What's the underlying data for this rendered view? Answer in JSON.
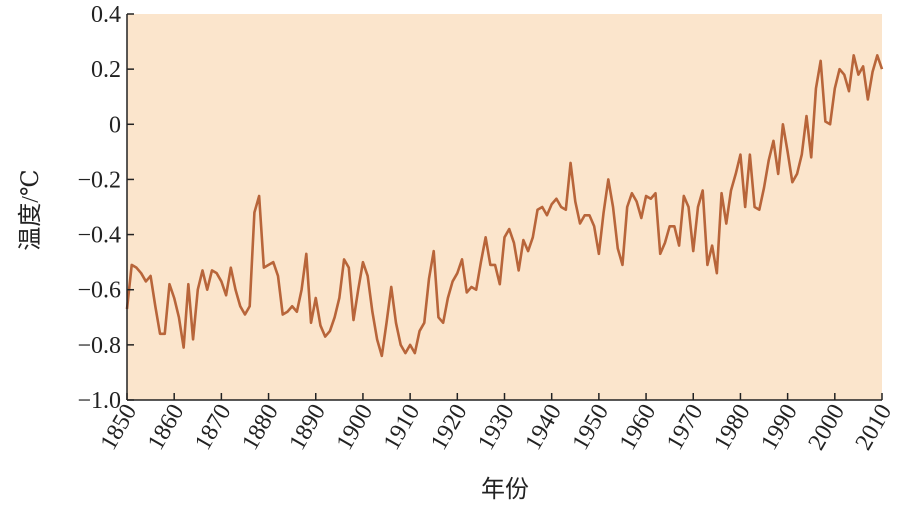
{
  "chart_data": {
    "type": "line",
    "x_label": "年份",
    "y_label": "温度/℃",
    "color": "#b8653a",
    "background": "#fbe5cc",
    "xlim": [
      1850,
      2010
    ],
    "ylim": [
      -1.0,
      0.4
    ],
    "xticks": [
      1850,
      1860,
      1870,
      1880,
      1890,
      1900,
      1910,
      1920,
      1930,
      1940,
      1950,
      1960,
      1970,
      1980,
      1990,
      2000,
      2010
    ],
    "yticks": [
      0.4,
      0.2,
      0,
      {
        "value": -0.2,
        "label": "−0.2"
      },
      {
        "value": -0.4,
        "label": "−0.4"
      },
      {
        "value": -0.6,
        "label": "−0.6"
      },
      {
        "value": -0.8,
        "label": "−0.8"
      },
      {
        "value": -1.0,
        "label": "−1.0"
      }
    ],
    "x": [
      1850,
      1851,
      1852,
      1853,
      1854,
      1855,
      1856,
      1857,
      1858,
      1859,
      1860,
      1861,
      1862,
      1863,
      1864,
      1865,
      1866,
      1867,
      1868,
      1869,
      1870,
      1871,
      1872,
      1873,
      1874,
      1875,
      1876,
      1877,
      1878,
      1879,
      1880,
      1881,
      1882,
      1883,
      1884,
      1885,
      1886,
      1887,
      1888,
      1889,
      1890,
      1891,
      1892,
      1893,
      1894,
      1895,
      1896,
      1897,
      1898,
      1899,
      1900,
      1901,
      1902,
      1903,
      1904,
      1905,
      1906,
      1907,
      1908,
      1909,
      1910,
      1911,
      1912,
      1913,
      1914,
      1915,
      1916,
      1917,
      1918,
      1919,
      1920,
      1921,
      1922,
      1923,
      1924,
      1925,
      1926,
      1927,
      1928,
      1929,
      1930,
      1931,
      1932,
      1933,
      1934,
      1935,
      1936,
      1937,
      1938,
      1939,
      1940,
      1941,
      1942,
      1943,
      1944,
      1945,
      1946,
      1947,
      1948,
      1949,
      1950,
      1951,
      1952,
      1953,
      1954,
      1955,
      1956,
      1957,
      1958,
      1959,
      1960,
      1961,
      1962,
      1963,
      1964,
      1965,
      1966,
      1967,
      1968,
      1969,
      1970,
      1971,
      1972,
      1973,
      1974,
      1975,
      1976,
      1977,
      1978,
      1979,
      1980,
      1981,
      1982,
      1983,
      1984,
      1985,
      1986,
      1987,
      1988,
      1989,
      1990,
      1991,
      1992,
      1993,
      1994,
      1995,
      1996,
      1997,
      1998,
      1999,
      2000,
      2001,
      2002,
      2003,
      2004,
      2005,
      2006,
      2007,
      2008,
      2009,
      2010
    ],
    "values": [
      -0.67,
      -0.51,
      -0.52,
      -0.54,
      -0.57,
      -0.55,
      -0.66,
      -0.76,
      -0.76,
      -0.58,
      -0.63,
      -0.7,
      -0.81,
      -0.58,
      -0.78,
      -0.6,
      -0.53,
      -0.6,
      -0.53,
      -0.54,
      -0.57,
      -0.62,
      -0.52,
      -0.6,
      -0.66,
      -0.69,
      -0.66,
      -0.32,
      -0.26,
      -0.52,
      -0.51,
      -0.5,
      -0.55,
      -0.69,
      -0.68,
      -0.66,
      -0.68,
      -0.6,
      -0.47,
      -0.72,
      -0.63,
      -0.73,
      -0.77,
      -0.75,
      -0.7,
      -0.63,
      -0.49,
      -0.52,
      -0.71,
      -0.6,
      -0.5,
      -0.55,
      -0.68,
      -0.78,
      -0.84,
      -0.72,
      -0.59,
      -0.72,
      -0.8,
      -0.83,
      -0.8,
      -0.83,
      -0.75,
      -0.72,
      -0.56,
      -0.46,
      -0.7,
      -0.72,
      -0.63,
      -0.57,
      -0.54,
      -0.49,
      -0.61,
      -0.59,
      -0.6,
      -0.5,
      -0.41,
      -0.51,
      -0.51,
      -0.58,
      -0.41,
      -0.38,
      -0.43,
      -0.53,
      -0.42,
      -0.46,
      -0.41,
      -0.31,
      -0.3,
      -0.33,
      -0.29,
      -0.27,
      -0.3,
      -0.31,
      -0.14,
      -0.28,
      -0.36,
      -0.33,
      -0.33,
      -0.37,
      -0.47,
      -0.32,
      -0.2,
      -0.3,
      -0.45,
      -0.51,
      -0.3,
      -0.25,
      -0.28,
      -0.34,
      -0.26,
      -0.27,
      -0.25,
      -0.47,
      -0.43,
      -0.37,
      -0.37,
      -0.44,
      -0.26,
      -0.3,
      -0.46,
      -0.3,
      -0.24,
      -0.51,
      -0.44,
      -0.54,
      -0.25,
      -0.36,
      -0.24,
      -0.18,
      -0.11,
      -0.3,
      -0.11,
      -0.3,
      -0.31,
      -0.23,
      -0.13,
      -0.06,
      -0.18,
      0.0,
      -0.1,
      -0.21,
      -0.18,
      -0.11,
      0.03,
      -0.12,
      0.13,
      0.23,
      0.01,
      0.0,
      0.13,
      0.2,
      0.18,
      0.12,
      0.25,
      0.18,
      0.21,
      0.09,
      0.19,
      0.25,
      0.2
    ]
  }
}
